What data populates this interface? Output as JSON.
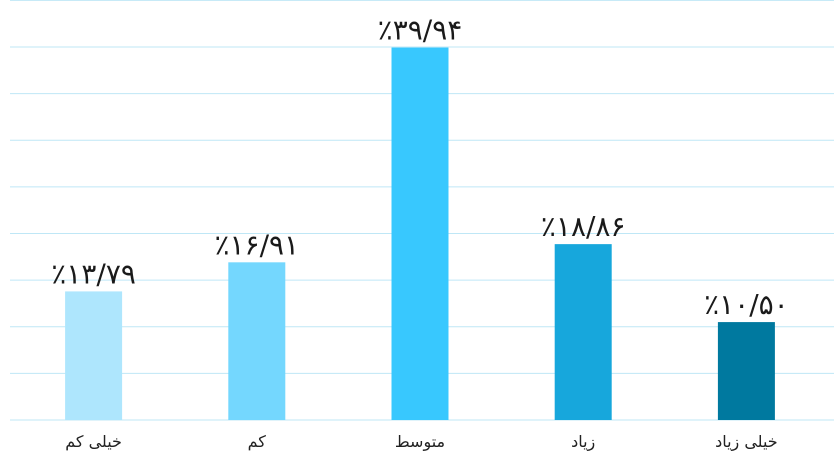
{
  "chart_data": {
    "type": "bar",
    "categories": [
      "خیلی کم",
      "کم",
      "متوسط",
      "زیاد",
      "خیلی زیاد"
    ],
    "values": [
      13.79,
      16.91,
      39.94,
      18.86,
      10.5
    ],
    "value_labels": [
      "٪۱۳/۷۹",
      "٪۱۶/۹۱",
      "٪۳۹/۹۴",
      "٪۱۸/۸۶",
      "٪۱۰/۵۰"
    ],
    "colors": [
      "#aee6fd",
      "#74d7fe",
      "#38c8fe",
      "#17a7dc",
      "#00799f"
    ],
    "ylim": [
      0,
      40
    ],
    "grid": true
  }
}
